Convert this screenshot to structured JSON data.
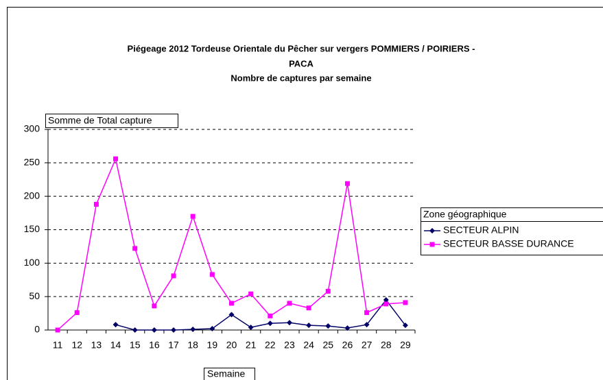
{
  "chart_data": {
    "type": "line",
    "title": [
      "Piégeage 2012 Tordeuse Orientale du Pêcher sur vergers POMMIERS / POIRIERS -",
      "PACA",
      "Nombre de captures par semaine"
    ],
    "y_label": "Somme de Total capture",
    "x_label": "Semaine",
    "legend_title": "Zone géographique",
    "categories": [
      "11",
      "12",
      "13",
      "14",
      "15",
      "16",
      "17",
      "18",
      "19",
      "20",
      "21",
      "22",
      "23",
      "24",
      "25",
      "26",
      "27",
      "28",
      "29"
    ],
    "series": [
      {
        "name": "SECTEUR ALPIN",
        "color": "#000066",
        "marker": "diamond",
        "values": [
          null,
          null,
          null,
          8,
          0,
          0,
          0,
          1,
          2,
          23,
          4,
          10,
          11,
          7,
          6,
          3,
          8,
          45,
          7
        ]
      },
      {
        "name": "SECTEUR BASSE DURANCE",
        "color": "#ff00ff",
        "marker": "square",
        "values": [
          0,
          26,
          188,
          256,
          122,
          36,
          81,
          170,
          83,
          40,
          54,
          21,
          40,
          33,
          58,
          219,
          26,
          39,
          41
        ]
      }
    ],
    "ylim": [
      0,
      300
    ],
    "yticks": [
      0,
      50,
      100,
      150,
      200,
      250,
      300
    ],
    "grid": true
  }
}
